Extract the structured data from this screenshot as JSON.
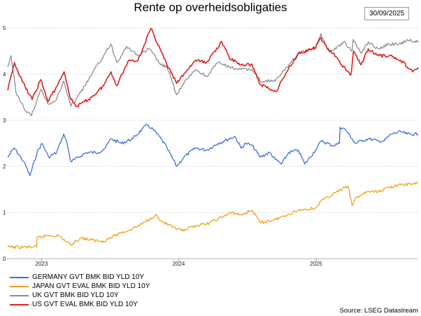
{
  "title": "Rente op overheidsobligaties",
  "date_badge": "30/09/2025",
  "source": "Source: LSEG Datastream",
  "chart_data": {
    "type": "line",
    "title": "Rente op overheidsobligaties",
    "xlabel": "",
    "ylabel": "",
    "xlim": [
      "2022-10-01",
      "2025-09-30"
    ],
    "ylim": [
      0,
      5
    ],
    "y_ticks": [
      0,
      1,
      2,
      3,
      4,
      5
    ],
    "x_tick_labels": [
      "2023",
      "2024",
      "2025"
    ],
    "x_tick_positions": [
      "2023-01-01",
      "2024-01-01",
      "2025-01-01"
    ],
    "grid": true,
    "legend_position": "bottom-left",
    "series": [
      {
        "name": "GERMANY GVT BMK BID YLD 10Y",
        "color": "#3d6de0",
        "points": [
          [
            "2022-10-03",
            2.2
          ],
          [
            "2022-10-20",
            2.4
          ],
          [
            "2022-11-15",
            2.1
          ],
          [
            "2022-12-01",
            1.8
          ],
          [
            "2022-12-20",
            2.3
          ],
          [
            "2023-01-02",
            2.5
          ],
          [
            "2023-01-20",
            2.2
          ],
          [
            "2023-02-10",
            2.3
          ],
          [
            "2023-03-01",
            2.7
          ],
          [
            "2023-03-10",
            2.5
          ],
          [
            "2023-03-20",
            2.1
          ],
          [
            "2023-04-10",
            2.2
          ],
          [
            "2023-05-01",
            2.3
          ],
          [
            "2023-06-01",
            2.3
          ],
          [
            "2023-06-20",
            2.4
          ],
          [
            "2023-07-05",
            2.6
          ],
          [
            "2023-08-01",
            2.5
          ],
          [
            "2023-09-01",
            2.6
          ],
          [
            "2023-09-25",
            2.8
          ],
          [
            "2023-10-10",
            2.9
          ],
          [
            "2023-10-25",
            2.8
          ],
          [
            "2023-11-15",
            2.6
          ],
          [
            "2023-12-01",
            2.4
          ],
          [
            "2023-12-27",
            2.0
          ],
          [
            "2024-01-15",
            2.2
          ],
          [
            "2024-02-15",
            2.4
          ],
          [
            "2024-03-15",
            2.35
          ],
          [
            "2024-04-15",
            2.5
          ],
          [
            "2024-05-01",
            2.55
          ],
          [
            "2024-05-30",
            2.65
          ],
          [
            "2024-06-15",
            2.4
          ],
          [
            "2024-06-28",
            2.5
          ],
          [
            "2024-07-15",
            2.45
          ],
          [
            "2024-08-05",
            2.2
          ],
          [
            "2024-08-30",
            2.3
          ],
          [
            "2024-09-15",
            2.15
          ],
          [
            "2024-10-01",
            2.05
          ],
          [
            "2024-10-20",
            2.3
          ],
          [
            "2024-11-15",
            2.35
          ],
          [
            "2024-12-02",
            2.05
          ],
          [
            "2024-12-31",
            2.36
          ],
          [
            "2025-01-15",
            2.55
          ],
          [
            "2025-02-15",
            2.45
          ],
          [
            "2025-03-04",
            2.5
          ],
          [
            "2025-03-06",
            2.85
          ],
          [
            "2025-03-20",
            2.8
          ],
          [
            "2025-04-07",
            2.6
          ],
          [
            "2025-04-15",
            2.5
          ],
          [
            "2025-05-01",
            2.55
          ],
          [
            "2025-05-20",
            2.6
          ],
          [
            "2025-06-15",
            2.55
          ],
          [
            "2025-07-01",
            2.55
          ],
          [
            "2025-07-20",
            2.7
          ],
          [
            "2025-08-15",
            2.75
          ],
          [
            "2025-09-01",
            2.7
          ],
          [
            "2025-09-30",
            2.7
          ]
        ]
      },
      {
        "name": "JAPAN GVT EVAL BMK BID YLD 10Y",
        "color": "#f0a21b",
        "points": [
          [
            "2022-10-03",
            0.25
          ],
          [
            "2022-12-19",
            0.25
          ],
          [
            "2022-12-20",
            0.45
          ],
          [
            "2023-01-15",
            0.5
          ],
          [
            "2023-02-15",
            0.5
          ],
          [
            "2023-03-20",
            0.3
          ],
          [
            "2023-04-15",
            0.45
          ],
          [
            "2023-05-15",
            0.4
          ],
          [
            "2023-06-15",
            0.38
          ],
          [
            "2023-07-28",
            0.55
          ],
          [
            "2023-08-31",
            0.65
          ],
          [
            "2023-09-25",
            0.75
          ],
          [
            "2023-10-31",
            0.95
          ],
          [
            "2023-11-15",
            0.82
          ],
          [
            "2023-12-15",
            0.68
          ],
          [
            "2024-01-15",
            0.6
          ],
          [
            "2024-02-15",
            0.72
          ],
          [
            "2024-03-15",
            0.75
          ],
          [
            "2024-04-15",
            0.86
          ],
          [
            "2024-05-22",
            1.0
          ],
          [
            "2024-06-15",
            0.95
          ],
          [
            "2024-07-15",
            1.05
          ],
          [
            "2024-08-05",
            0.78
          ],
          [
            "2024-09-15",
            0.85
          ],
          [
            "2024-10-15",
            0.95
          ],
          [
            "2024-11-15",
            1.05
          ],
          [
            "2024-12-31",
            1.1
          ],
          [
            "2025-01-15",
            1.25
          ],
          [
            "2025-02-15",
            1.4
          ],
          [
            "2025-03-27",
            1.57
          ],
          [
            "2025-04-07",
            1.15
          ],
          [
            "2025-04-15",
            1.3
          ],
          [
            "2025-05-15",
            1.45
          ],
          [
            "2025-06-15",
            1.45
          ],
          [
            "2025-07-15",
            1.55
          ],
          [
            "2025-08-15",
            1.6
          ],
          [
            "2025-09-15",
            1.62
          ],
          [
            "2025-09-30",
            1.65
          ]
        ]
      },
      {
        "name": "UK GVT BMK BID YLD 10Y",
        "color": "#8c8c8c",
        "points": [
          [
            "2022-10-03",
            4.15
          ],
          [
            "2022-10-12",
            4.4
          ],
          [
            "2022-10-25",
            3.6
          ],
          [
            "2022-11-20",
            3.2
          ],
          [
            "2022-12-05",
            3.1
          ],
          [
            "2022-12-30",
            3.67
          ],
          [
            "2023-01-20",
            3.35
          ],
          [
            "2023-02-10",
            3.45
          ],
          [
            "2023-03-01",
            3.85
          ],
          [
            "2023-03-20",
            3.3
          ],
          [
            "2023-04-15",
            3.6
          ],
          [
            "2023-05-15",
            4.0
          ],
          [
            "2023-06-15",
            4.4
          ],
          [
            "2023-07-05",
            4.65
          ],
          [
            "2023-07-20",
            4.25
          ],
          [
            "2023-08-15",
            4.6
          ],
          [
            "2023-09-15",
            4.4
          ],
          [
            "2023-10-15",
            4.55
          ],
          [
            "2023-11-15",
            4.2
          ],
          [
            "2023-12-01",
            4.15
          ],
          [
            "2023-12-27",
            3.55
          ],
          [
            "2024-01-15",
            3.8
          ],
          [
            "2024-02-15",
            4.1
          ],
          [
            "2024-03-15",
            3.95
          ],
          [
            "2024-04-15",
            4.25
          ],
          [
            "2024-05-15",
            4.15
          ],
          [
            "2024-06-15",
            4.1
          ],
          [
            "2024-07-15",
            4.1
          ],
          [
            "2024-08-05",
            3.85
          ],
          [
            "2024-09-15",
            3.85
          ],
          [
            "2024-10-15",
            4.15
          ],
          [
            "2024-11-15",
            4.45
          ],
          [
            "2024-12-31",
            4.57
          ],
          [
            "2025-01-14",
            4.88
          ],
          [
            "2025-01-31",
            4.55
          ],
          [
            "2025-02-15",
            4.5
          ],
          [
            "2025-03-15",
            4.7
          ],
          [
            "2025-04-07",
            4.5
          ],
          [
            "2025-04-10",
            4.75
          ],
          [
            "2025-05-01",
            4.45
          ],
          [
            "2025-05-20",
            4.7
          ],
          [
            "2025-06-15",
            4.55
          ],
          [
            "2025-07-15",
            4.65
          ],
          [
            "2025-08-15",
            4.65
          ],
          [
            "2025-09-01",
            4.75
          ],
          [
            "2025-09-30",
            4.7
          ]
        ]
      },
      {
        "name": "US GVT EVAL BMK BID YLD 10Y",
        "color": "#e11b1b",
        "points": [
          [
            "2022-10-03",
            3.65
          ],
          [
            "2022-10-21",
            4.25
          ],
          [
            "2022-11-10",
            3.85
          ],
          [
            "2022-12-07",
            3.45
          ],
          [
            "2022-12-30",
            3.88
          ],
          [
            "2023-01-18",
            3.4
          ],
          [
            "2023-02-15",
            3.8
          ],
          [
            "2023-03-02",
            4.05
          ],
          [
            "2023-03-20",
            3.45
          ],
          [
            "2023-04-06",
            3.3
          ],
          [
            "2023-05-15",
            3.5
          ],
          [
            "2023-06-15",
            3.75
          ],
          [
            "2023-07-05",
            4.05
          ],
          [
            "2023-07-20",
            3.75
          ],
          [
            "2023-08-21",
            4.3
          ],
          [
            "2023-09-15",
            4.3
          ],
          [
            "2023-10-19",
            4.99
          ],
          [
            "2023-11-15",
            4.5
          ],
          [
            "2023-12-01",
            4.2
          ],
          [
            "2023-12-27",
            3.8
          ],
          [
            "2024-01-15",
            4.0
          ],
          [
            "2024-02-15",
            4.3
          ],
          [
            "2024-03-15",
            4.25
          ],
          [
            "2024-04-25",
            4.7
          ],
          [
            "2024-05-15",
            4.35
          ],
          [
            "2024-06-15",
            4.2
          ],
          [
            "2024-07-15",
            4.2
          ],
          [
            "2024-08-05",
            3.78
          ],
          [
            "2024-09-16",
            3.62
          ],
          [
            "2024-10-15",
            4.05
          ],
          [
            "2024-11-15",
            4.45
          ],
          [
            "2024-12-31",
            4.57
          ],
          [
            "2025-01-14",
            4.79
          ],
          [
            "2025-01-31",
            4.55
          ],
          [
            "2025-02-15",
            4.45
          ],
          [
            "2025-03-10",
            4.2
          ],
          [
            "2025-04-04",
            3.99
          ],
          [
            "2025-04-11",
            4.5
          ],
          [
            "2025-05-01",
            4.2
          ],
          [
            "2025-05-20",
            4.55
          ],
          [
            "2025-06-15",
            4.4
          ],
          [
            "2025-07-15",
            4.4
          ],
          [
            "2025-08-15",
            4.3
          ],
          [
            "2025-09-15",
            4.05
          ],
          [
            "2025-09-30",
            4.15
          ]
        ]
      }
    ]
  }
}
